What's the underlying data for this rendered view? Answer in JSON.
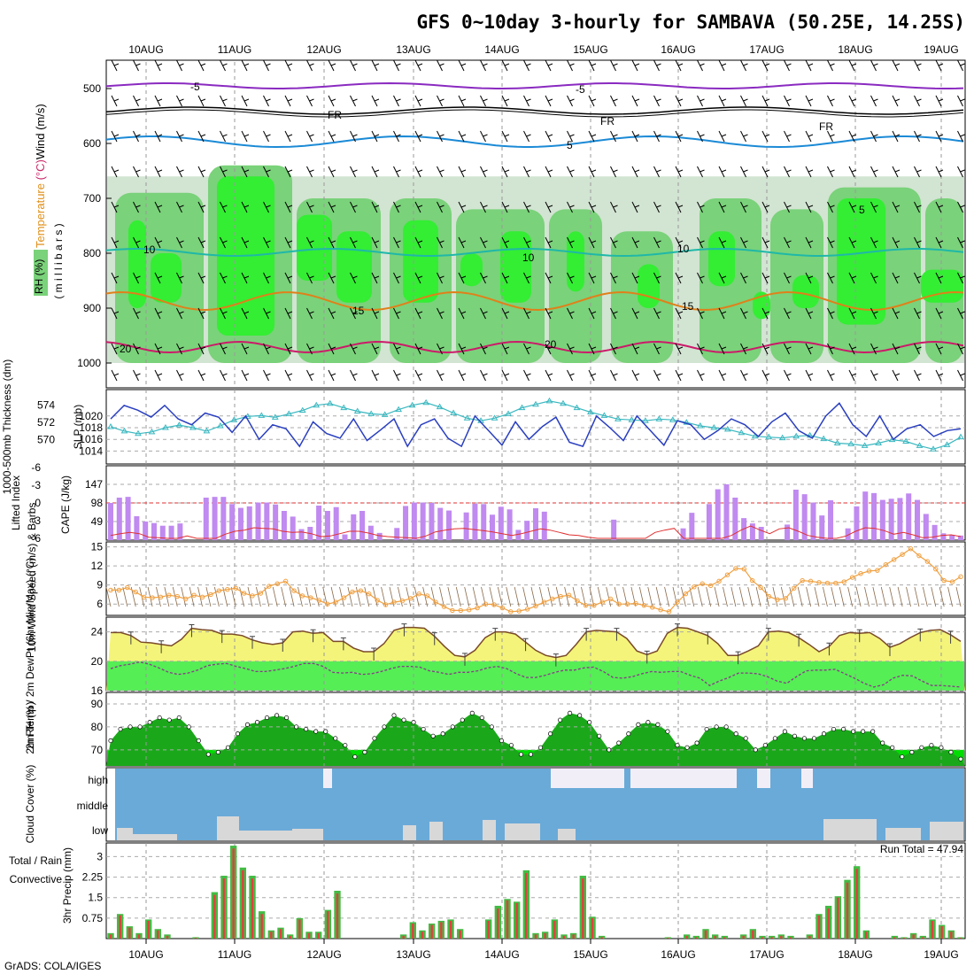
{
  "title": "GFS 0~10day 3-hourly for SAMBAVA (50.25E, 14.25S)",
  "credit": "GrADS: COLA/IGES",
  "run_total_label": "Run Total = 47.94",
  "colors": {
    "rh_dark": "#7ad27a",
    "rh_bright": "#33ee33",
    "rh_light": "#d2e4d2",
    "thick": "#3ab8c0",
    "slp": "#2a3fbf",
    "cape": "#c08af0",
    "li": "#e03030",
    "wind": "#f0a040",
    "temp": "#f4f47a",
    "tmax": "#f49040",
    "dew": "#55ee55",
    "rh2": "#00dd00",
    "rh2dark": "#1aa81a",
    "cloud": "#6aaad8",
    "rain": "#e04040",
    "total": "#44bb44"
  },
  "chart_data": [
    {
      "type": "heatmap",
      "name": "upper-air",
      "xlabels": [
        "10AUG",
        "11AUG",
        "12AUG",
        "13AUG",
        "14AUG",
        "15AUG",
        "16AUG",
        "17AUG",
        "18AUG",
        "19AUG"
      ],
      "ylabel_parts": {
        "rh": "RH (%)",
        "temp": "Temperature (°C)",
        "wind": "Wind (m/s)",
        "units": "( m i l l i b a r s )"
      },
      "yticks": [
        500,
        600,
        700,
        800,
        900,
        1000
      ],
      "contour_labels": {
        "p5": "-5",
        "fr": "FR",
        "c5": "5",
        "c10": "10",
        "c15": "15",
        "c20": "20"
      }
    },
    {
      "type": "line",
      "name": "thickness-slp",
      "ylabel_left": "1000-500mb Thickness (dm)",
      "ylabel_right": "SLP (mb)",
      "yticks_left": [
        570,
        572,
        574
      ],
      "yticks_right": [
        1014,
        1016,
        1018,
        1020
      ],
      "series": [
        {
          "name": "1000-500mb Thickness (dm)",
          "values": [
            571.5,
            571,
            570.7,
            570.9,
            571.4,
            571.7,
            571.4,
            571,
            571.6,
            572.3,
            572.7,
            572.8,
            572.6,
            573,
            573.4,
            574,
            574.2,
            573.7,
            573.3,
            573,
            572.9,
            573.5,
            574,
            574.3,
            573.8,
            573.1,
            572.5,
            572.2,
            572.5,
            573,
            573.7,
            574.1,
            574.5,
            574.2,
            573.7,
            573.2,
            572.8,
            572.4,
            572.3,
            572.2,
            572.4,
            572.3,
            572,
            571.6,
            571.4,
            571.2,
            570.8,
            570.4,
            570.3,
            570.2,
            570.4,
            570.5,
            570.1,
            569.6,
            569.5,
            569.3,
            569.6,
            570,
            569.8,
            569.3,
            568.9,
            569.4,
            570.3
          ]
        },
        {
          "name": "SLP (mb)",
          "values": [
            1019.5,
            1021.8,
            1021,
            1019.8,
            1021.8,
            1019.5,
            1018.5,
            1020.5,
            1019.8,
            1017.2,
            1020,
            1016,
            1018.5,
            1017.8,
            1014.8,
            1019,
            1017,
            1016.2,
            1019.5,
            1015.8,
            1017.6,
            1019.5,
            1014.8,
            1018.5,
            1019.5,
            1016.2,
            1014.8,
            1020,
            1017.5,
            1015,
            1019,
            1016,
            1018.2,
            1019.8,
            1015.5,
            1014.8,
            1020,
            1018,
            1015.8,
            1020,
            1017.5,
            1015,
            1019.2,
            1018.5,
            1016,
            1017.5,
            1019.5,
            1018.5,
            1016.5,
            1019,
            1020.5,
            1017.5,
            1016.2,
            1020,
            1022.2,
            1018.5,
            1016.5,
            1020,
            1016,
            1017.8,
            1018.5,
            1016.5,
            1017.5,
            1017.8
          ]
        }
      ]
    },
    {
      "type": "bar",
      "name": "cape-li",
      "ylabel_left": "Lifted Index",
      "ylabel_right": "CAPE (J/kg)",
      "yticks_left": [
        -6,
        -3,
        0,
        3,
        6
      ],
      "yticks_right": [
        49,
        98,
        147
      ],
      "series": [
        {
          "name": "CAPE (J/kg)",
          "values": [
            98,
            112,
            114,
            63,
            49,
            45,
            38,
            38,
            44,
            0,
            0,
            112,
            114,
            114,
            95,
            85,
            89,
            99,
            99,
            94,
            77,
            62,
            29,
            35,
            91,
            77,
            87,
            15,
            68,
            77,
            38,
            19,
            0,
            32,
            90,
            99,
            99,
            98,
            85,
            78,
            0,
            73,
            96,
            95,
            67,
            88,
            81,
            27,
            51,
            84,
            75,
            0,
            0,
            0,
            0,
            0,
            0,
            0,
            54,
            0,
            0,
            0,
            0,
            0,
            0,
            0,
            31,
            72,
            0,
            95,
            134,
            147,
            112,
            58,
            44,
            35,
            0,
            0,
            41,
            133,
            121,
            99,
            65,
            105,
            0,
            31,
            89,
            128,
            124,
            106,
            109,
            111,
            123,
            106,
            69,
            40,
            18,
            14,
            12
          ],
          "li": [
            5.5,
            5.2,
            5,
            5.2,
            5.8,
            5.9,
            6,
            6,
            5.6,
            6,
            6,
            6,
            5.3,
            4.8,
            4.6,
            4.2,
            4.3,
            4.4,
            4.8,
            5,
            4.9,
            5.2,
            5.7,
            5.6,
            5.2,
            4.8,
            4.8,
            5.1,
            5.5,
            5.7,
            5.8,
            5.9,
            6,
            5.6,
            4.9,
            4.6,
            4.4,
            4.3,
            4.5,
            4.7,
            4.9,
            5.2,
            5.5,
            5.2,
            4.8,
            4.4,
            4.6,
            5,
            5.4,
            5.5,
            5.8,
            6,
            6,
            6,
            6,
            6,
            6,
            5,
            4.6,
            4.3,
            6,
            6,
            6,
            6,
            6,
            5.5,
            4.6,
            3.9,
            4.6,
            5.2,
            4.4,
            4.2,
            4.8,
            5.5,
            5.8,
            6,
            6,
            5.6,
            4.8,
            4.2,
            4.3,
            4.7,
            5.3,
            5,
            5.4,
            5.9,
            5.8,
            5.5,
            5.4,
            5.7
          ]
        }
      ]
    },
    {
      "type": "line",
      "name": "wind",
      "ylabel": "10m Wind Speed (m/s) & Barbs",
      "yticks": [
        6,
        9,
        12,
        15
      ],
      "series": [
        {
          "name": "10m Wind Speed",
          "values": [
            8.2,
            8.2,
            8.6,
            7.9,
            7.1,
            7.0,
            7.1,
            7.4,
            7.2,
            6.8,
            7.4,
            7.1,
            7.5,
            8.1,
            8.3,
            8.5,
            7.7,
            7.3,
            7.7,
            8.8,
            9.2,
            9.6,
            8.1,
            7.3,
            7.0,
            6.6,
            6.0,
            6.3,
            7.0,
            7.9,
            8.1,
            7.6,
            6.6,
            5.9,
            6.3,
            6.5,
            6.9,
            7.6,
            7.3,
            6.3,
            5.6,
            5.0,
            5.0,
            5.1,
            5.4,
            6.0,
            5.9,
            5.4,
            4.8,
            4.9,
            5.2,
            5.7,
            6.3,
            6.8,
            7.2,
            7.4,
            6.5,
            5.8,
            5.8,
            6.3,
            6.8,
            6.0,
            6.0,
            6.1,
            5.8,
            5.5,
            5.1,
            4.8,
            6.3,
            7.6,
            8.7,
            9.2,
            8.9,
            9.6,
            10.6,
            11.6,
            11.5,
            9.7,
            8.6,
            7.2,
            6.7,
            6.9,
            8.5,
            9.7,
            9.6,
            9.4,
            9.3,
            9.3,
            9.5,
            10.2,
            10.8,
            11.2,
            11.3,
            12.2,
            13.0,
            13.8,
            14.7,
            13.6,
            12.7,
            11.5,
            9.7,
            9.5,
            10.3
          ]
        }
      ]
    },
    {
      "type": "area",
      "name": "temp-dew",
      "ylabel": "2m Temp / 2m DewPt (6hr Min/Max) (°C)",
      "yticks": [
        16,
        20,
        24
      ],
      "series": [
        {
          "name": "2m Temp",
          "values": [
            23.9,
            23.9,
            23.5,
            22.6,
            22.5,
            22.3,
            22.1,
            23.0,
            24.5,
            24.3,
            24.2,
            23.7,
            23.7,
            23.5,
            22.9,
            22.5,
            22.3,
            22.5,
            24.0,
            24.1,
            23.8,
            23.9,
            22.7,
            22.7,
            21.8,
            21.3,
            21.3,
            22.4,
            24.2,
            24.6,
            24.6,
            24.5,
            23.4,
            22.0,
            20.8,
            20.6,
            21.5,
            23.2,
            24.0,
            24.0,
            23.7,
            22.6,
            21.5,
            20.8,
            20.5,
            20.8,
            22.3,
            24.0,
            24.2,
            24.1,
            24.0,
            23.1,
            21.4,
            20.9,
            21.4,
            23.8,
            24.6,
            24.5,
            24.0,
            23.5,
            22.4,
            20.8,
            20.8,
            21.4,
            22.1,
            24.0,
            24.1,
            23.9,
            23.2,
            22.3,
            21.3,
            22.0,
            23.5,
            23.9,
            23.8,
            23.9,
            23.1,
            21.9,
            22.4,
            23.2,
            23.9,
            24.2,
            24.3,
            23.6,
            22.7
          ]
        },
        {
          "name": "2m DewPt",
          "values": [
            19.0,
            19.4,
            19.6,
            19.9,
            19.6,
            19.1,
            18.5,
            18.2,
            18.4,
            18.8,
            19.4,
            19.6,
            19.7,
            19.3,
            19.0,
            18.6,
            18.6,
            18.8,
            19.0,
            19.3,
            19.7,
            19.7,
            19.3,
            18.5,
            18.4,
            18.5,
            18.2,
            18.3,
            18.6,
            19.0,
            19.3,
            19.3,
            19.2,
            18.7,
            18.5,
            18.2,
            18.5,
            18.5,
            18.7,
            19.1,
            19.3,
            19.0,
            18.3,
            17.8,
            17.8,
            18.1,
            18.5,
            18.8,
            18.8,
            19.1,
            19.2,
            18.6,
            17.8,
            17.7,
            17.9,
            18.3,
            18.6,
            18.5,
            18.6,
            18.6,
            18.1,
            17.7,
            16.7,
            17.3,
            17.8,
            18.4,
            18.4,
            18.3,
            17.9,
            17.3,
            17.0,
            17.9,
            18.7,
            18.8,
            18.8,
            18.9,
            18.3,
            17.7,
            17.0,
            16.5,
            16.8,
            17.7,
            18.1,
            18.0,
            17.3,
            16.7,
            16.7,
            16.6,
            16.5
          ]
        }
      ]
    },
    {
      "type": "area",
      "name": "rh2m",
      "ylabel": "2m RH (%)",
      "yticks": [
        70,
        80,
        90
      ],
      "series": [
        {
          "name": "2m RH",
          "values": [
            74,
            79,
            80,
            80,
            82,
            84,
            83,
            84,
            80,
            74,
            68,
            69,
            71,
            77,
            81,
            82,
            84,
            85,
            84,
            80,
            79,
            78,
            78,
            75,
            72,
            67,
            69,
            75,
            80,
            85,
            83,
            82,
            79,
            76,
            77,
            80,
            83,
            86,
            84,
            80,
            74,
            72,
            68,
            68,
            71,
            77,
            83,
            86,
            85,
            82,
            76,
            70,
            73,
            77,
            81,
            82,
            81,
            78,
            72,
            71,
            73,
            79,
            80,
            80,
            77,
            75,
            70,
            72,
            75,
            78,
            76,
            75,
            75,
            77,
            79,
            79,
            78,
            78,
            78,
            73,
            71,
            67,
            69,
            71,
            72,
            71,
            69,
            66
          ]
        }
      ]
    },
    {
      "type": "area",
      "name": "cloud",
      "ylabel": "Cloud Cover (%)",
      "levels": [
        "high",
        "middle",
        "low"
      ]
    },
    {
      "type": "bar",
      "name": "precip",
      "ylabel": "3hr Precip (mm)",
      "ylabel_left_parts": [
        "Total / Rain",
        "Convective"
      ],
      "yticks": [
        "0.75",
        "1.5",
        "2.25",
        "3"
      ],
      "ytick_values": [
        0.75,
        1.5,
        2.25,
        3
      ],
      "series": [
        {
          "name": "Total",
          "values": [
            0.2,
            0.9,
            0.45,
            0.2,
            0.7,
            0.35,
            0.15,
            0,
            0,
            0.05,
            0,
            1.7,
            2.3,
            3.4,
            2.6,
            2.3,
            1.0,
            0.3,
            0.4,
            0.15,
            0.75,
            0.25,
            0.25,
            1.05,
            1.75,
            0,
            0,
            0,
            0,
            0,
            0,
            0.15,
            0.6,
            0.3,
            0.55,
            0.65,
            0.7,
            0.35,
            0,
            0,
            0.7,
            1.2,
            1.45,
            1.35,
            2.5,
            0.2,
            0.25,
            0.7,
            0.15,
            0.2,
            2.3,
            0.8,
            0.1,
            0,
            0,
            0,
            0,
            0,
            0,
            0.05,
            0,
            0.15,
            0.1,
            0.35,
            0.15,
            0.1,
            0,
            0.15,
            0.35,
            0.1,
            0.1,
            0.15,
            0.1,
            0,
            0.15,
            0.9,
            1.2,
            1.55,
            2.15,
            2.65,
            0.3,
            0,
            0,
            0.1,
            0.05,
            0.2,
            0.1,
            0.7,
            0.5,
            0.3,
            0.05
          ]
        },
        {
          "name": "Convective",
          "values": [
            0.15,
            0.85,
            0.4,
            0.15,
            0.65,
            0.3,
            0.1,
            0,
            0,
            0.03,
            0,
            1.6,
            2.2,
            3.3,
            2.5,
            2.2,
            0.9,
            0.25,
            0.35,
            0.1,
            0.7,
            0.2,
            0.2,
            1.0,
            1.65,
            0,
            0,
            0,
            0,
            0,
            0,
            0.1,
            0.55,
            0.25,
            0.5,
            0.6,
            0.65,
            0.3,
            0,
            0,
            0.65,
            1.1,
            1.4,
            1.3,
            2.4,
            0.15,
            0.2,
            0.65,
            0.1,
            0.15,
            2.2,
            0.75,
            0.05,
            0,
            0,
            0,
            0,
            0,
            0,
            0.03,
            0,
            0.1,
            0.05,
            0.3,
            0.1,
            0.05,
            0,
            0.1,
            0.3,
            0.05,
            0.05,
            0.1,
            0.05,
            0,
            0.1,
            0.85,
            1.1,
            1.5,
            2.05,
            2.55,
            0.25,
            0,
            0,
            0.05,
            0.03,
            0.15,
            0.05,
            0.65,
            0.45,
            0.25,
            0.03
          ]
        }
      ]
    }
  ]
}
